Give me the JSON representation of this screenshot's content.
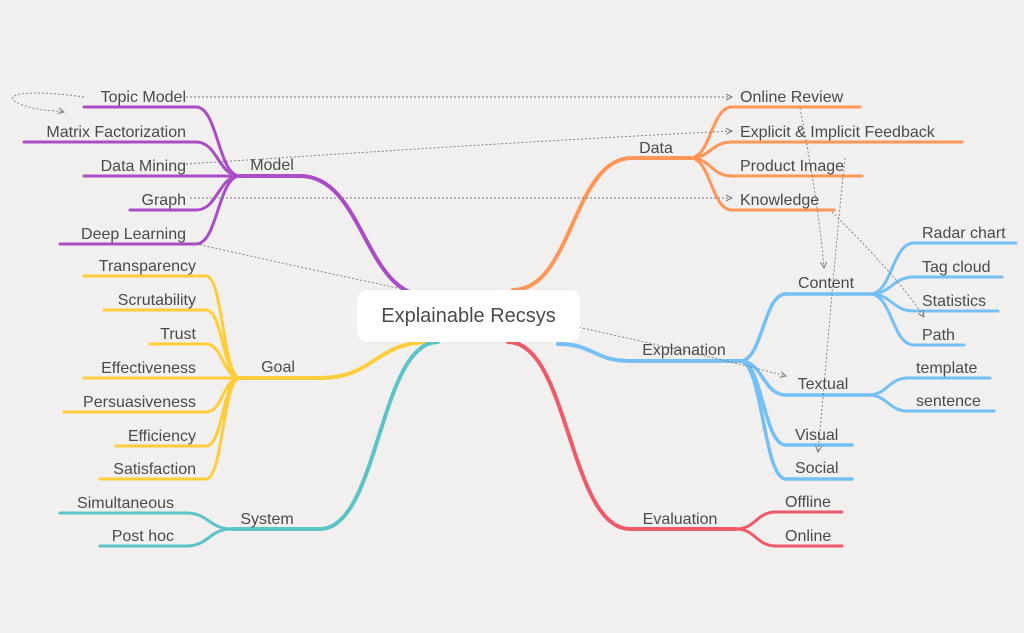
{
  "center": {
    "label": "Explainable Recsys"
  },
  "colors": {
    "model": "#a94cc5",
    "goal": "#ffcc3a",
    "system": "#5cc3c7",
    "data": "#ff9657",
    "explanation": "#74bff4",
    "evaluation": "#f0596a",
    "background": "#f1f0ef",
    "text": "#4a4a4a",
    "link": "#7a7a7a"
  },
  "branches": {
    "model": {
      "label": "Model",
      "leaves": [
        "Topic Model",
        "Matrix Factorization",
        "Data Mining",
        "Graph",
        "Deep Learning"
      ]
    },
    "goal": {
      "label": "Goal",
      "leaves": [
        "Transparency",
        "Scrutability",
        "Trust",
        "Effectiveness",
        "Persuasiveness",
        "Efficiency",
        "Satisfaction"
      ]
    },
    "system": {
      "label": "System",
      "leaves": [
        "Simultaneous",
        "Post hoc"
      ]
    },
    "data": {
      "label": "Data",
      "leaves": [
        "Online Review",
        "Explicit & Implicit Feedback",
        "Product Image",
        "Knowledge"
      ]
    },
    "explanation": {
      "label": "Explanation",
      "content": {
        "label": "Content",
        "leaves": [
          "Radar chart",
          "Tag cloud",
          "Statistics",
          "Path"
        ]
      },
      "textual": {
        "label": "Textual",
        "leaves": [
          "template",
          "sentence"
        ]
      },
      "visual": {
        "label": "Visual"
      },
      "social": {
        "label": "Social"
      }
    },
    "evaluation": {
      "label": "Evaluation",
      "leaves": [
        "Offline",
        "Online"
      ]
    }
  }
}
